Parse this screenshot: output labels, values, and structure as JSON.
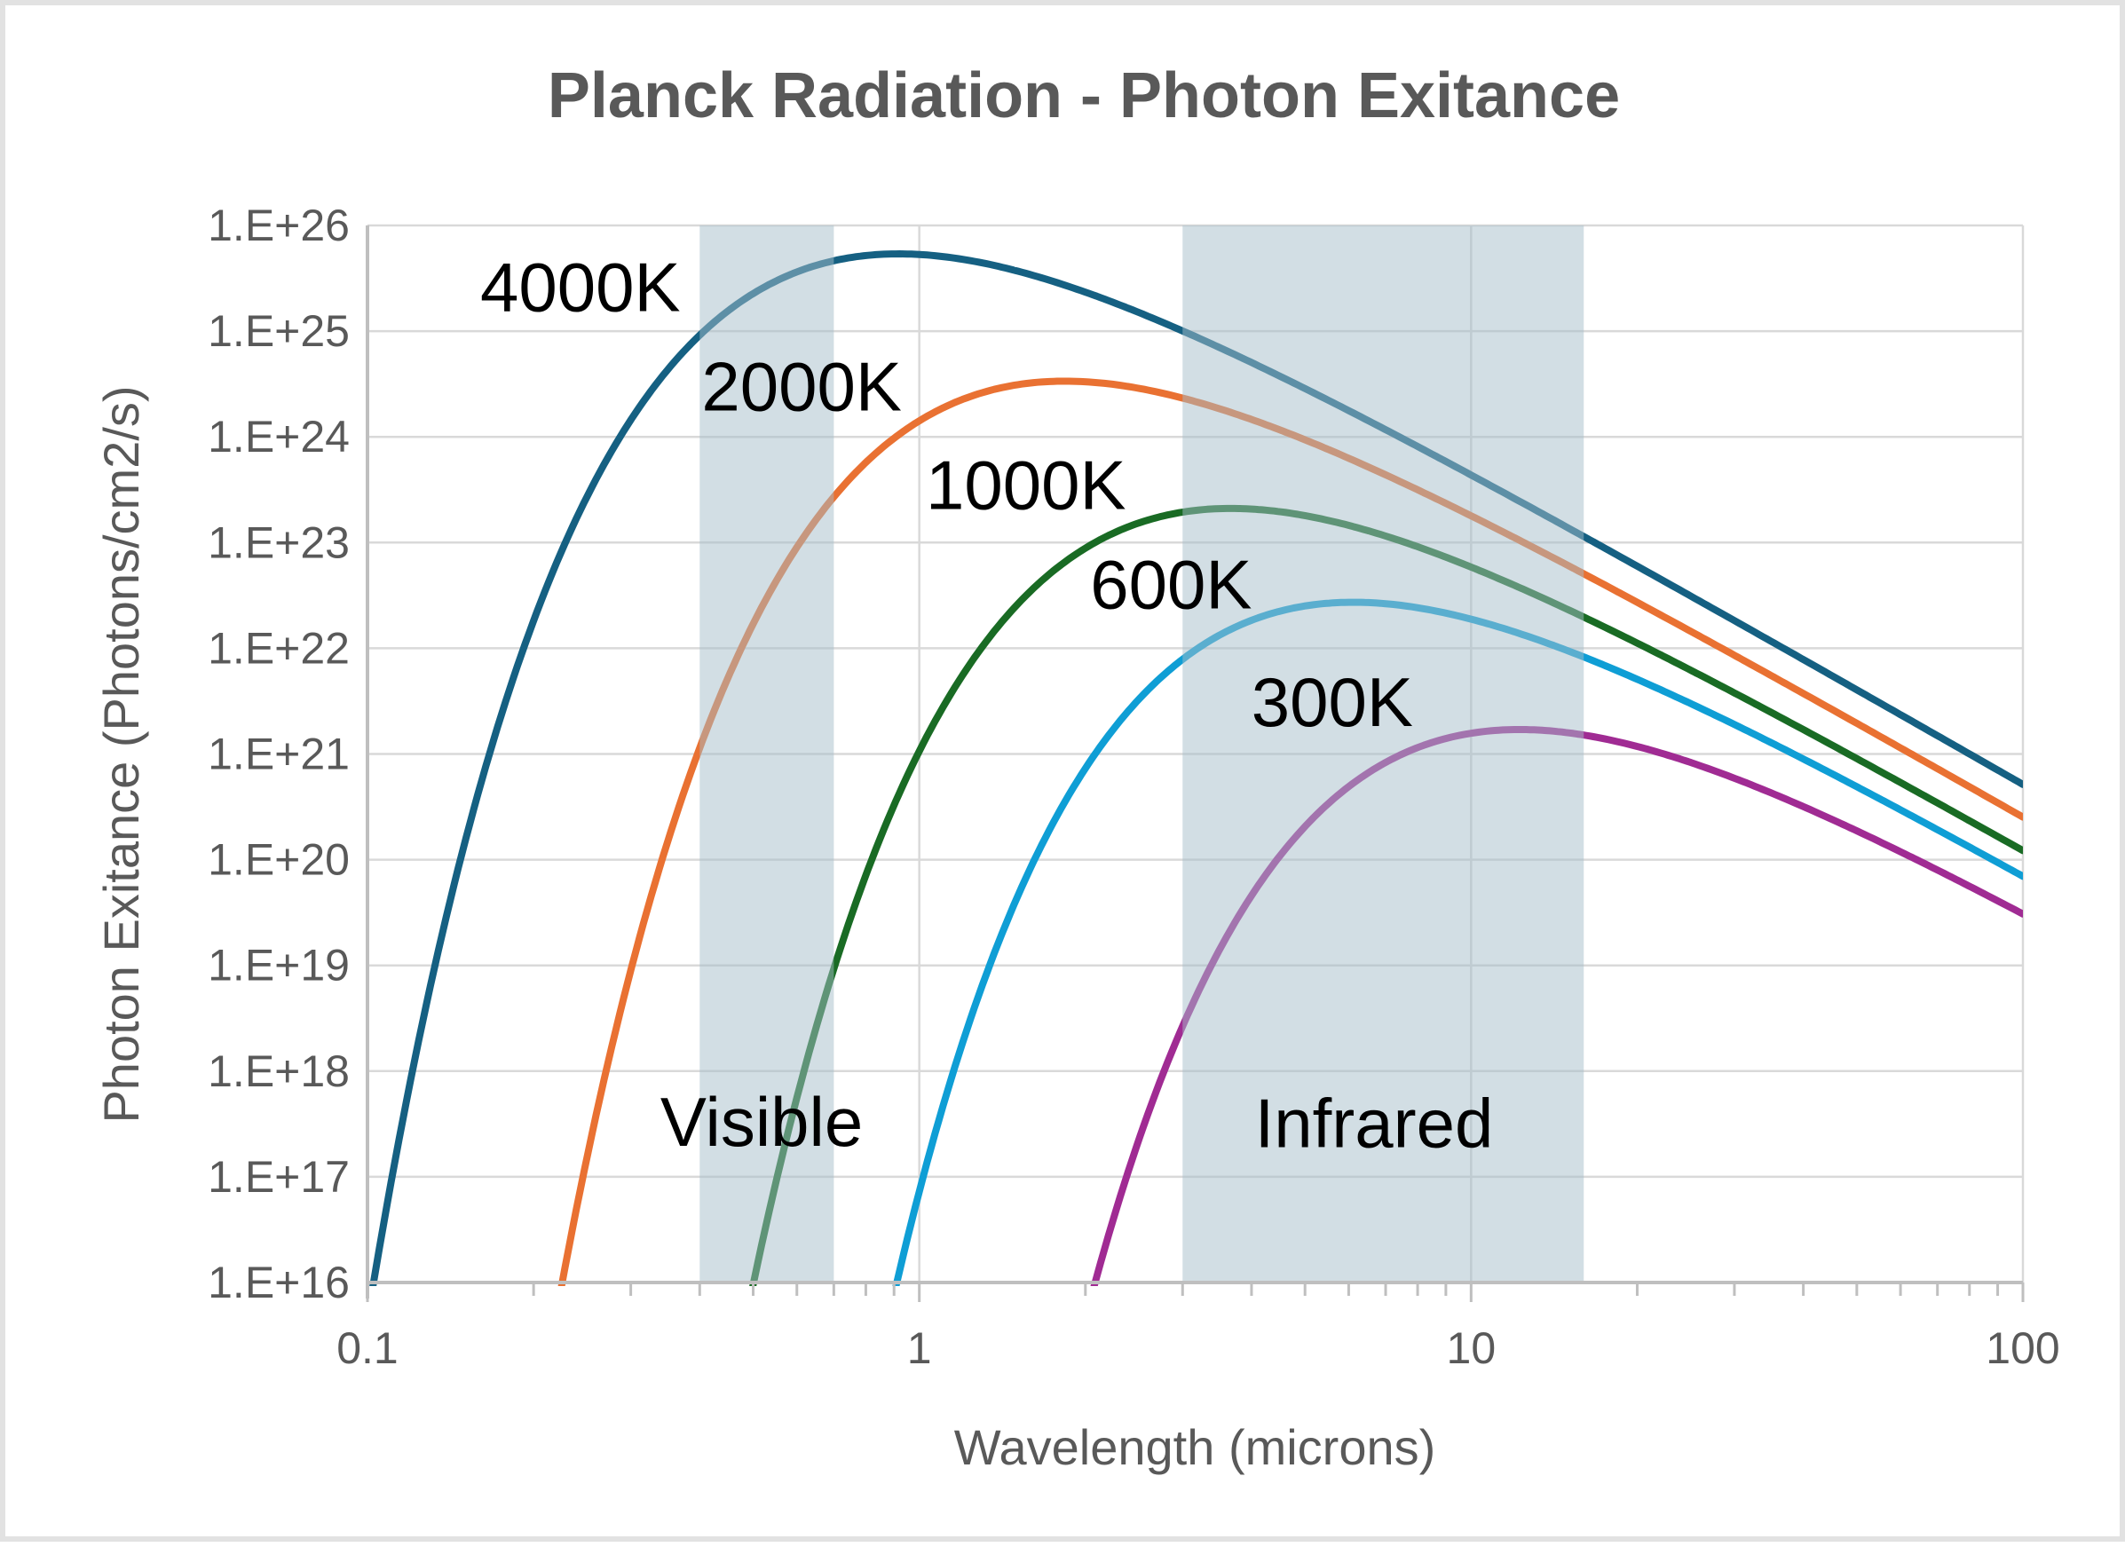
{
  "window": {
    "background_color": "#FFFFFF",
    "frame_border_color": "#E2E2E2"
  },
  "chart_data": {
    "type": "line",
    "title": "Planck Radiation - Photon Exitance",
    "xlabel": "Wavelength (microns)",
    "ylabel": "Photon Exitance (Photons/cm2/s)",
    "x_axis": {
      "scale": "log",
      "min": 0.1,
      "max": 100,
      "tick_values": [
        0.1,
        1,
        10,
        100
      ],
      "tick_labels": [
        "0.1",
        "1",
        "10",
        "100"
      ],
      "gridline_values": [
        1,
        10,
        100
      ],
      "minor_tick_decades": [
        0.1,
        1,
        10
      ]
    },
    "y_axis": {
      "scale": "log",
      "min": 1e+16,
      "max": 1e+26,
      "tick_values": [
        1e+26,
        1e+25,
        1e+24,
        1e+23,
        1e+22,
        1e+21,
        1e+20,
        1e+19,
        1e+18,
        1e+17,
        1e+16
      ],
      "tick_labels": [
        "1.E+26",
        "1.E+25",
        "1.E+24",
        "1.E+23",
        "1.E+22",
        "1.E+21",
        "1.E+20",
        "1.E+19",
        "1.E+18",
        "1.E+17",
        "1.E+16"
      ]
    },
    "grid": true,
    "legend_position": "none (inline curve labels)",
    "model": "Planck spectral photon exitance M(lambda,T) = 1.885e27 / (lambda_um^4 * (exp(14388/(lambda_um*T)) - 1)) photons/s/cm2/cm",
    "series": [
      {
        "name": "4000K",
        "temperature_K": 4000,
        "color": "#156082",
        "label_anchor": {
          "x_microns": 0.243,
          "y_value": 2.6e+25
        },
        "key_points": [
          {
            "x_microns": 0.102,
            "y": 1e+16
          },
          {
            "x_microns": 0.3,
            "y": 1.4e+24
          },
          {
            "x_microns": 0.92,
            "y": 5.4e+25
          },
          {
            "x_microns": 2,
            "y": 2.3e+25
          },
          {
            "x_microns": 10,
            "y": 4.3e+23
          },
          {
            "x_microns": 100,
            "y": 5.2e+20
          }
        ]
      },
      {
        "name": "2000K",
        "temperature_K": 2000,
        "color": "#E97132",
        "label_anchor": {
          "x_microns": 0.612,
          "y_value": 3e+24
        },
        "key_points": [
          {
            "x_microns": 0.227,
            "y": 1e+16
          },
          {
            "x_microns": 1.84,
            "y": 3.4e+24
          },
          {
            "x_microns": 10,
            "y": 1.8e+23
          },
          {
            "x_microns": 100,
            "y": 2.5e+20
          }
        ]
      },
      {
        "name": "1000K",
        "temperature_K": 1000,
        "color": "#196B24",
        "label_anchor": {
          "x_microns": 1.56,
          "y_value": 3.5e+23
        },
        "key_points": [
          {
            "x_microns": 0.5,
            "y": 1e+16
          },
          {
            "x_microns": 3.67,
            "y": 2.1e+23
          },
          {
            "x_microns": 10,
            "y": 5.9e+22
          },
          {
            "x_microns": 100,
            "y": 1.2e+20
          }
        ]
      },
      {
        "name": "600K",
        "temperature_K": 600,
        "color": "#0F9ED5",
        "label_anchor": {
          "x_microns": 2.86,
          "y_value": 4e+22
        },
        "key_points": [
          {
            "x_microns": 0.91,
            "y": 1e+16
          },
          {
            "x_microns": 6.12,
            "y": 2.7e+22
          },
          {
            "x_microns": 10,
            "y": 1.9e+22
          },
          {
            "x_microns": 100,
            "y": 7e+19
          }
        ]
      },
      {
        "name": "300K",
        "temperature_K": 300,
        "color": "#A02B93",
        "label_anchor": {
          "x_microns": 5.6,
          "y_value": 3.1e+21
        },
        "key_points": [
          {
            "x_microns": 2.07,
            "y": 1e+16
          },
          {
            "x_microns": 12.2,
            "y": 1.7e+21
          },
          {
            "x_microns": 20,
            "y": 1.2e+21
          },
          {
            "x_microns": 100,
            "y": 3.1e+19
          }
        ]
      }
    ],
    "bands": [
      {
        "label": "Visible",
        "from_microns": 0.4,
        "to_microns": 0.7,
        "label_anchor": {
          "x_microns": 0.518,
          "y_value": 3.3e+17
        }
      },
      {
        "label": "Infrared",
        "from_microns": 3,
        "to_microns": 16,
        "label_anchor": {
          "x_microns": 6.67,
          "y_value": 3.2e+17
        }
      }
    ],
    "colors": {
      "band_fill": "rgba(166,189,202,0.5)",
      "gridline": "#D9D9D9",
      "axis_line": "#BFBFBF",
      "tick_text": "#595959",
      "title_text": "#595959",
      "annotation_text": "#000000"
    }
  }
}
